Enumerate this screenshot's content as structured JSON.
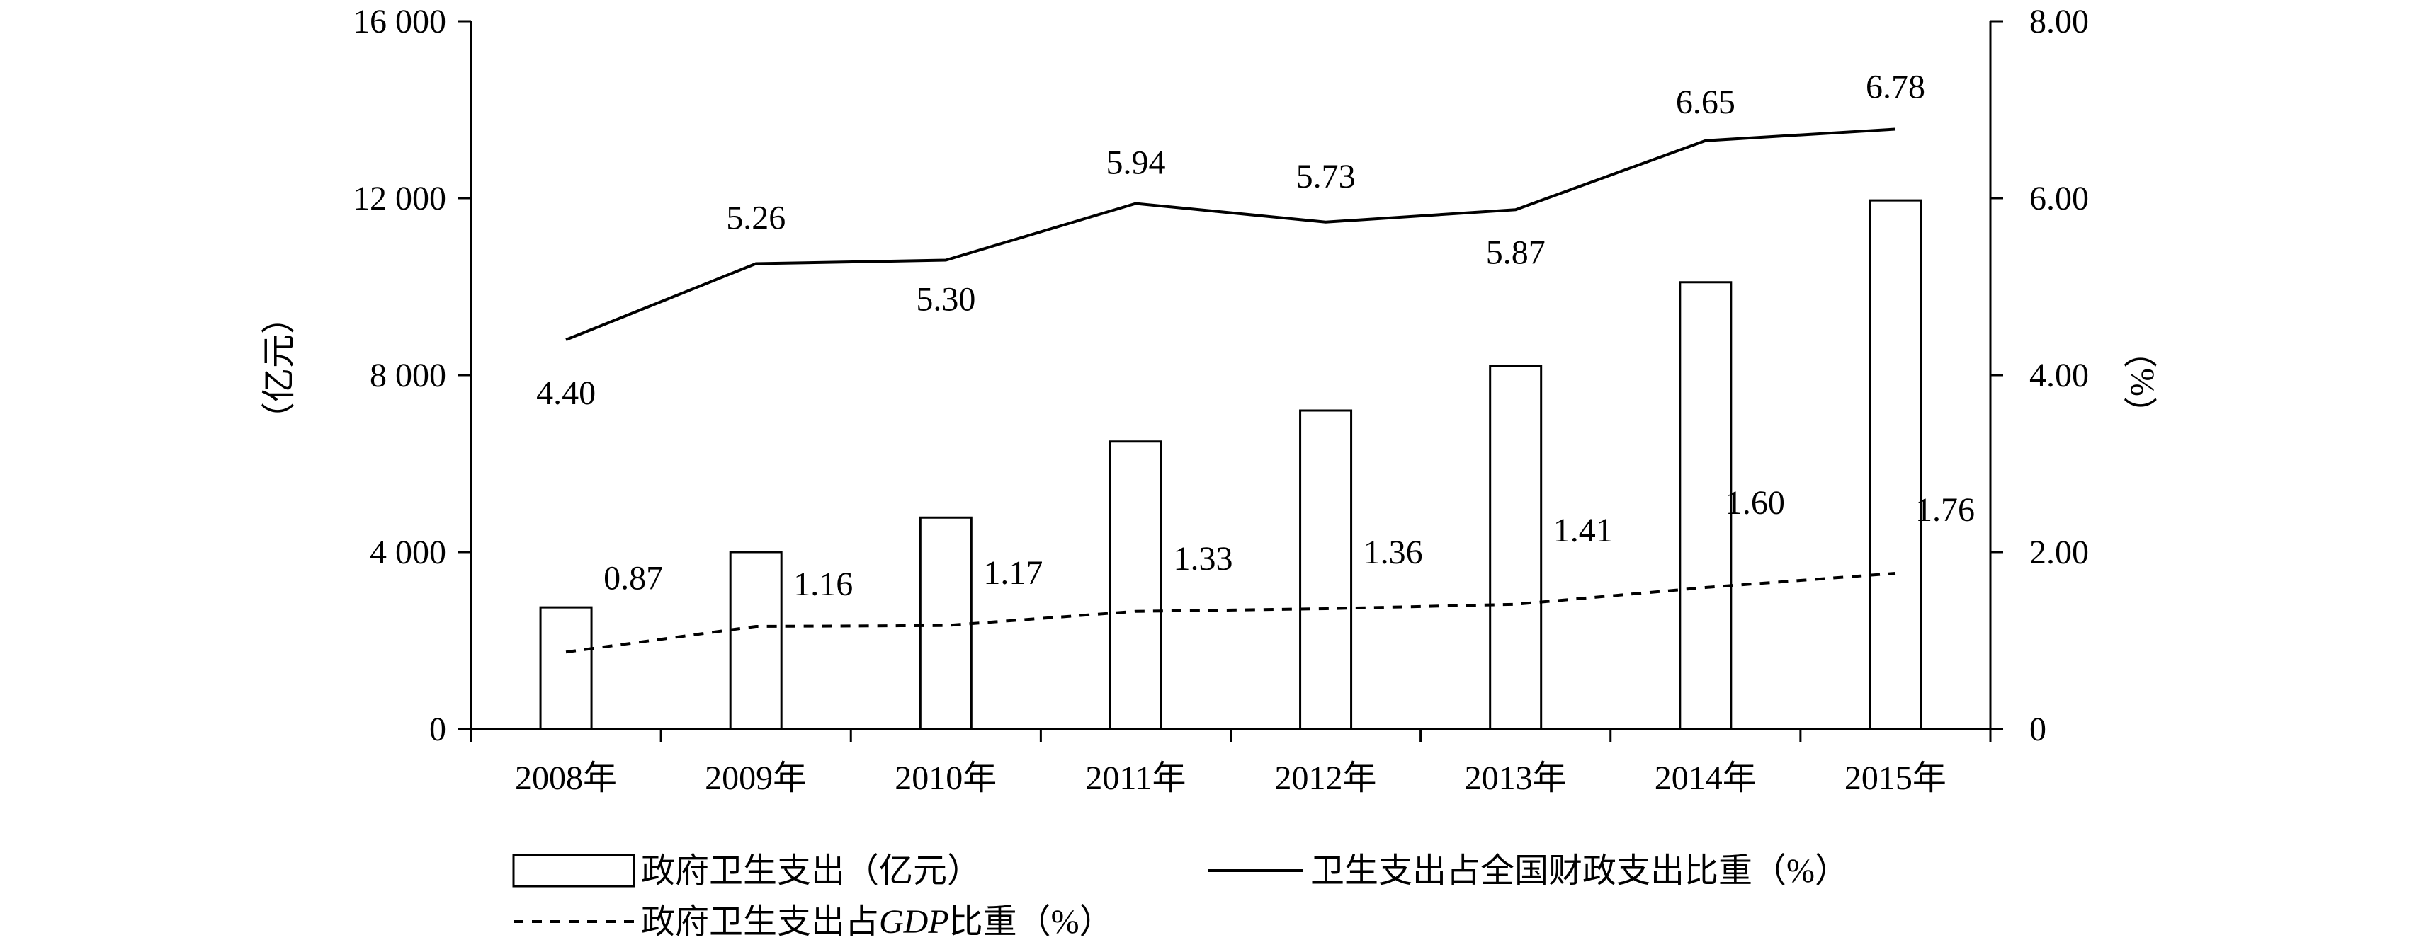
{
  "chart_data": {
    "type": "bar",
    "categories": [
      "2008年",
      "2009年",
      "2010年",
      "2011年",
      "2012年",
      "2013年",
      "2014年",
      "2015年"
    ],
    "series": [
      {
        "name": "政府卫生支出（亿元）",
        "type": "bar",
        "axis": "left",
        "values": [
          2750,
          4000,
          4780,
          6500,
          7200,
          8200,
          10100,
          11950
        ]
      },
      {
        "name": "卫生支出占全国财政支出比重（%）",
        "type": "line",
        "axis": "right",
        "style": "solid",
        "values": [
          4.4,
          5.26,
          5.3,
          5.94,
          5.73,
          5.87,
          6.65,
          6.78
        ],
        "labels": [
          "4.40",
          "5.26",
          "5.30",
          "5.94",
          "5.73",
          "5.87",
          "6.65",
          "6.78"
        ]
      },
      {
        "name": "政府卫生支出占GDP比重（%）",
        "type": "line",
        "axis": "right",
        "style": "dashed",
        "values": [
          0.87,
          1.16,
          1.17,
          1.33,
          1.36,
          1.41,
          1.6,
          1.76
        ],
        "labels": [
          "0.87",
          "1.16",
          "1.17",
          "1.33",
          "1.36",
          "1.41",
          "1.60",
          "1.76"
        ]
      }
    ],
    "yaxis_left": {
      "label": "（亿元）",
      "range": [
        0,
        16000
      ],
      "ticks": [
        0,
        4000,
        8000,
        12000,
        16000
      ],
      "tick_labels": [
        "0",
        "4 000",
        "8 000",
        "12 000",
        "16 000"
      ]
    },
    "yaxis_right": {
      "label": "（%）",
      "range": [
        0,
        8
      ],
      "ticks": [
        0,
        2,
        4,
        6,
        8
      ],
      "tick_labels": [
        "0",
        "2.00",
        "4.00",
        "6.00",
        "8.00"
      ]
    },
    "legend": {
      "placement": "bottom",
      "entries": [
        {
          "label": "政府卫生支出（亿元）",
          "symbol": "bar"
        },
        {
          "label": "卫生支出占全国财政支出比重（%）",
          "symbol": "solid"
        },
        {
          "label_prefix": "政府卫生支出占",
          "label_italic": "GDP",
          "label_suffix": "比重（%）",
          "symbol": "dashed"
        }
      ]
    },
    "grid": false
  }
}
